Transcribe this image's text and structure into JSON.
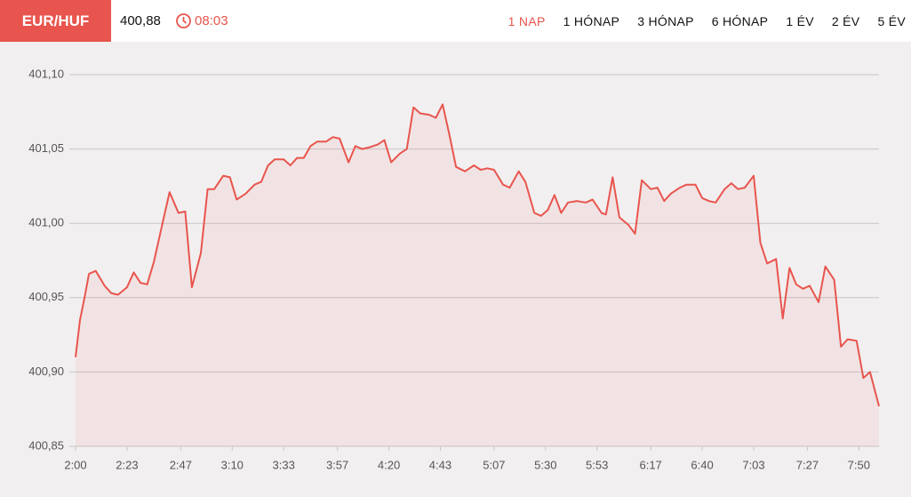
{
  "header": {
    "pair": "EUR/HUF",
    "price": "400,88",
    "time": "08:03",
    "tabs": [
      "1 NAP",
      "1 HÓNAP",
      "3 HÓNAP",
      "6 HÓNAP",
      "1 ÉV",
      "2 ÉV",
      "5 ÉV"
    ],
    "active_tab": 0
  },
  "chart_data": {
    "type": "line",
    "color": "#e8554e",
    "grid": true,
    "x": [
      120,
      122,
      124,
      126,
      129,
      133,
      136,
      139,
      143,
      146,
      149,
      152,
      155,
      159,
      162,
      166,
      169,
      172,
      176,
      179,
      182,
      186,
      189,
      192,
      196,
      200,
      203,
      206,
      209,
      213,
      216,
      219,
      222,
      225,
      228,
      232,
      235,
      238,
      242,
      245,
      248,
      251,
      255,
      258,
      261,
      265,
      268,
      271,
      274,
      278,
      281,
      284,
      287,
      290,
      294,
      298,
      301,
      304,
      307,
      311,
      314,
      318,
      321,
      325,
      328,
      331,
      334,
      337,
      340,
      344,
      348,
      351,
      355,
      357,
      360,
      363,
      367,
      370,
      373,
      377,
      380,
      383,
      386,
      390,
      393,
      397,
      400,
      403,
      406,
      410,
      413,
      416,
      419,
      423,
      426,
      429,
      433,
      436,
      439,
      442,
      445,
      448,
      452,
      455,
      459,
      462,
      465,
      469,
      472,
      475,
      479
    ],
    "values": [
      400.91,
      400.935,
      400.95,
      400.966,
      400.968,
      400.958,
      400.953,
      400.952,
      400.957,
      400.967,
      400.96,
      400.959,
      400.974,
      401.001,
      401.021,
      401.007,
      401.008,
      400.957,
      400.98,
      401.023,
      401.023,
      401.032,
      401.031,
      401.016,
      401.02,
      401.026,
      401.028,
      401.039,
      401.043,
      401.043,
      401.039,
      401.044,
      401.044,
      401.052,
      401.055,
      401.055,
      401.058,
      401.057,
      401.041,
      401.052,
      401.05,
      401.051,
      401.053,
      401.056,
      401.041,
      401.047,
      401.05,
      401.078,
      401.074,
      401.073,
      401.071,
      401.08,
      401.06,
      401.038,
      401.035,
      401.039,
      401.036,
      401.037,
      401.036,
      401.026,
      401.024,
      401.035,
      401.028,
      401.007,
      401.005,
      401.009,
      401.019,
      401.007,
      401.014,
      401.015,
      401.014,
      401.016,
      401.007,
      401.006,
      401.031,
      401.004,
      400.999,
      400.993,
      401.029,
      401.023,
      401.024,
      401.015,
      401.02,
      401.024,
      401.026,
      401.026,
      401.017,
      401.015,
      401.014,
      401.023,
      401.027,
      401.023,
      401.024,
      401.032,
      400.987,
      400.973,
      400.976,
      400.936,
      400.97,
      400.959,
      400.956,
      400.958,
      400.947,
      400.971,
      400.962,
      400.917,
      400.922,
      400.921,
      400.896,
      400.9,
      400.877
    ],
    "xlim": [
      120,
      479
    ],
    "xticks": [
      {
        "value": 120,
        "label": "2:00"
      },
      {
        "value": 143,
        "label": "2:23"
      },
      {
        "value": 167,
        "label": "2:47"
      },
      {
        "value": 190,
        "label": "3:10"
      },
      {
        "value": 213,
        "label": "3:33"
      },
      {
        "value": 237,
        "label": "3:57"
      },
      {
        "value": 260,
        "label": "4:20"
      },
      {
        "value": 283,
        "label": "4:43"
      },
      {
        "value": 307,
        "label": "5:07"
      },
      {
        "value": 330,
        "label": "5:30"
      },
      {
        "value": 353,
        "label": "5:53"
      },
      {
        "value": 377,
        "label": "6:17"
      },
      {
        "value": 400,
        "label": "6:40"
      },
      {
        "value": 423,
        "label": "7:03"
      },
      {
        "value": 447,
        "label": "7:27"
      },
      {
        "value": 470,
        "label": "7:50"
      }
    ],
    "ylim": [
      400.85,
      401.1
    ],
    "yticks": [
      {
        "value": 400.85,
        "label": "400,85"
      },
      {
        "value": 400.9,
        "label": "400,90"
      },
      {
        "value": 400.95,
        "label": "400,95"
      },
      {
        "value": 401.0,
        "label": "401,00"
      },
      {
        "value": 401.05,
        "label": "401,05"
      },
      {
        "value": 401.1,
        "label": "401,10"
      }
    ]
  }
}
